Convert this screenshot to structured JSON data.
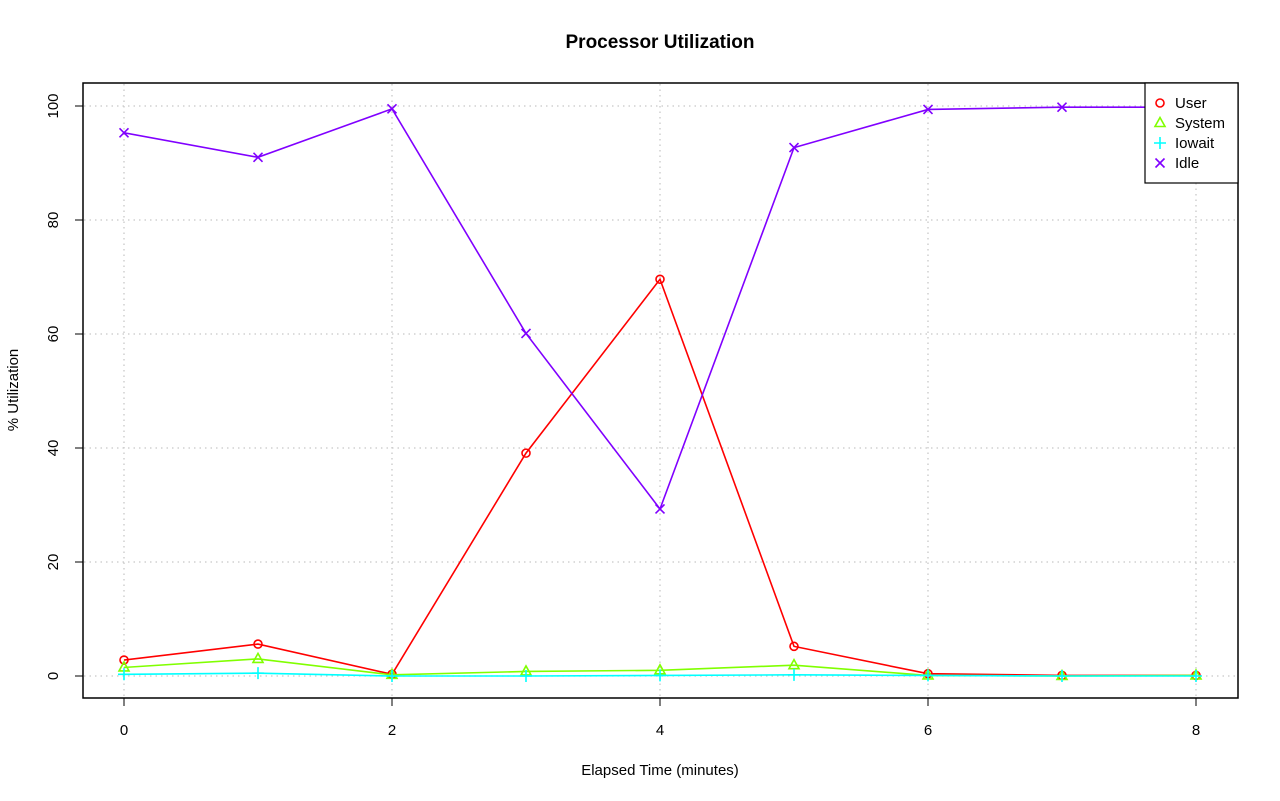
{
  "chart_data": {
    "type": "line",
    "title": "Processor Utilization",
    "xlabel": "Elapsed Time (minutes)",
    "ylabel": "% Utilization",
    "xlim": [
      0,
      8
    ],
    "ylim": [
      0,
      100
    ],
    "x_ticks": [
      0,
      2,
      4,
      6,
      8
    ],
    "y_ticks": [
      0,
      20,
      40,
      60,
      80,
      100
    ],
    "grid": true,
    "legend_position": "top-right",
    "x": [
      0,
      1,
      2,
      3,
      4,
      5,
      6,
      7,
      8
    ],
    "series": [
      {
        "name": "User",
        "color": "#ff0000",
        "marker": "circle",
        "values": [
          2.8,
          5.6,
          0.3,
          39.1,
          69.6,
          5.2,
          0.4,
          0.1,
          0.1
        ]
      },
      {
        "name": "System",
        "color": "#80ff00",
        "marker": "triangle",
        "values": [
          1.5,
          3.0,
          0.2,
          0.8,
          1.0,
          1.9,
          0.1,
          0.0,
          0.1
        ]
      },
      {
        "name": "Iowait",
        "color": "#00ffff",
        "marker": "plus",
        "values": [
          0.3,
          0.5,
          0.0,
          0.0,
          0.1,
          0.2,
          0.1,
          0.0,
          0.0
        ]
      },
      {
        "name": "Idle",
        "color": "#8000ff",
        "marker": "cross",
        "values": [
          95.3,
          91.0,
          99.5,
          60.1,
          29.3,
          92.7,
          99.4,
          99.8,
          99.8
        ]
      }
    ]
  }
}
